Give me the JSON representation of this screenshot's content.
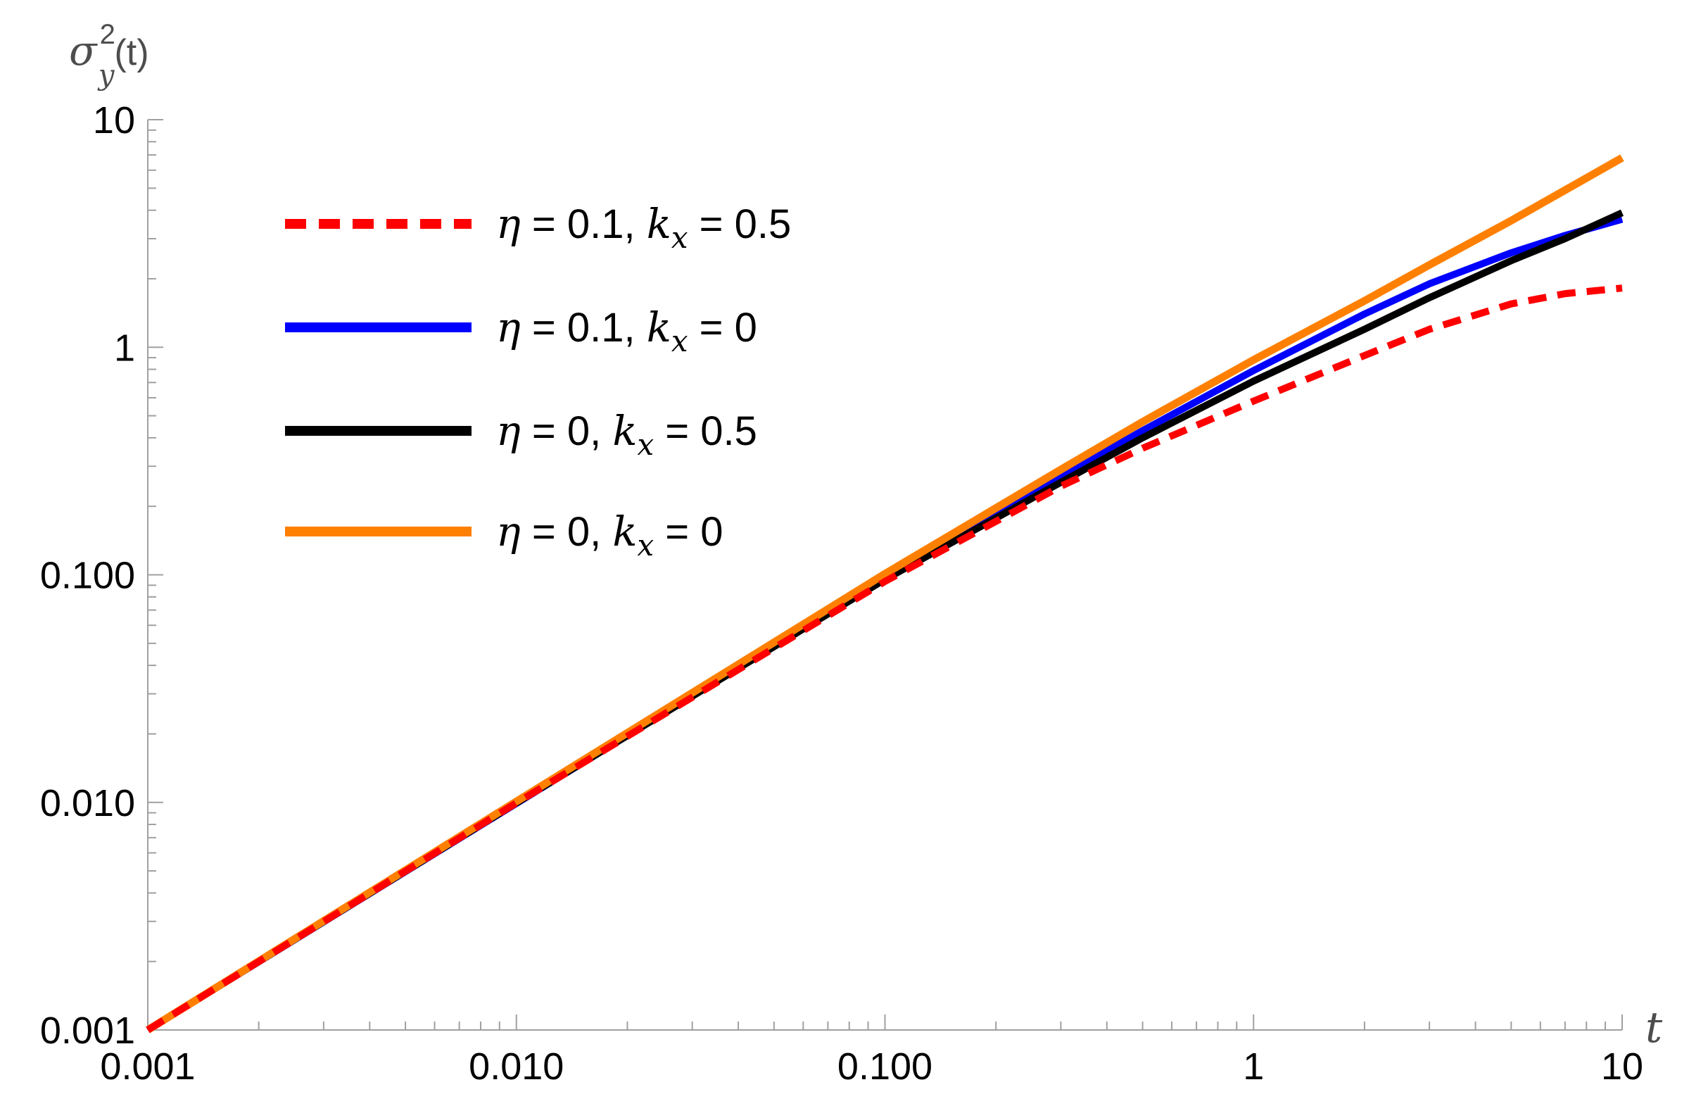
{
  "chart_data": {
    "type": "line",
    "xscale": "log",
    "yscale": "log",
    "xlim": [
      0.001,
      10
    ],
    "ylim": [
      0.001,
      10
    ],
    "xlabel": "t",
    "ylabel": {
      "base": "σ",
      "superscript": "2",
      "subscript": "y",
      "suffix": "(t)"
    },
    "x_ticks": [
      {
        "value": 0.001,
        "label": "0.001"
      },
      {
        "value": 0.01,
        "label": "0.010"
      },
      {
        "value": 0.1,
        "label": "0.100"
      },
      {
        "value": 1,
        "label": "1"
      },
      {
        "value": 10,
        "label": "10"
      }
    ],
    "y_ticks": [
      {
        "value": 0.001,
        "label": "0.001"
      },
      {
        "value": 0.01,
        "label": "0.010"
      },
      {
        "value": 0.1,
        "label": "0.100"
      },
      {
        "value": 1,
        "label": "1"
      },
      {
        "value": 10,
        "label": "10"
      }
    ],
    "grid": false,
    "legend_position": "top-left",
    "x": [
      0.001,
      0.01,
      0.1,
      0.3,
      0.5,
      1,
      2,
      3,
      5,
      7,
      10
    ],
    "series": [
      {
        "name": {
          "eta": "0.1",
          "k": "0.5",
          "text": "η = 0.1, kx = 0.5"
        },
        "color": "#ff0000",
        "style": "dashed",
        "values": [
          0.001,
          0.00995,
          0.0935,
          0.245,
          0.36,
          0.58,
          0.92,
          1.2,
          1.55,
          1.72,
          1.82
        ]
      },
      {
        "name": {
          "eta": "0.1",
          "k": "0",
          "text": "η = 0.1, kx = 0"
        },
        "color": "#0000ff",
        "style": "solid",
        "values": [
          0.001,
          0.0099,
          0.097,
          0.27,
          0.43,
          0.79,
          1.4,
          1.9,
          2.6,
          3.1,
          3.65
        ]
      },
      {
        "name": {
          "eta": "0",
          "k": "0.5",
          "text": "η = 0, kx = 0.5"
        },
        "color": "#000000",
        "style": "solid",
        "values": [
          0.001,
          0.00995,
          0.0955,
          0.255,
          0.4,
          0.71,
          1.2,
          1.65,
          2.4,
          3.0,
          3.9
        ]
      },
      {
        "name": {
          "eta": "0",
          "k": "0",
          "text": "η = 0, kx = 0"
        },
        "color": "#ff8000",
        "style": "solid",
        "values": [
          0.001,
          0.0101,
          0.101,
          0.29,
          0.47,
          0.88,
          1.6,
          2.3,
          3.6,
          4.9,
          6.8
        ]
      }
    ]
  }
}
